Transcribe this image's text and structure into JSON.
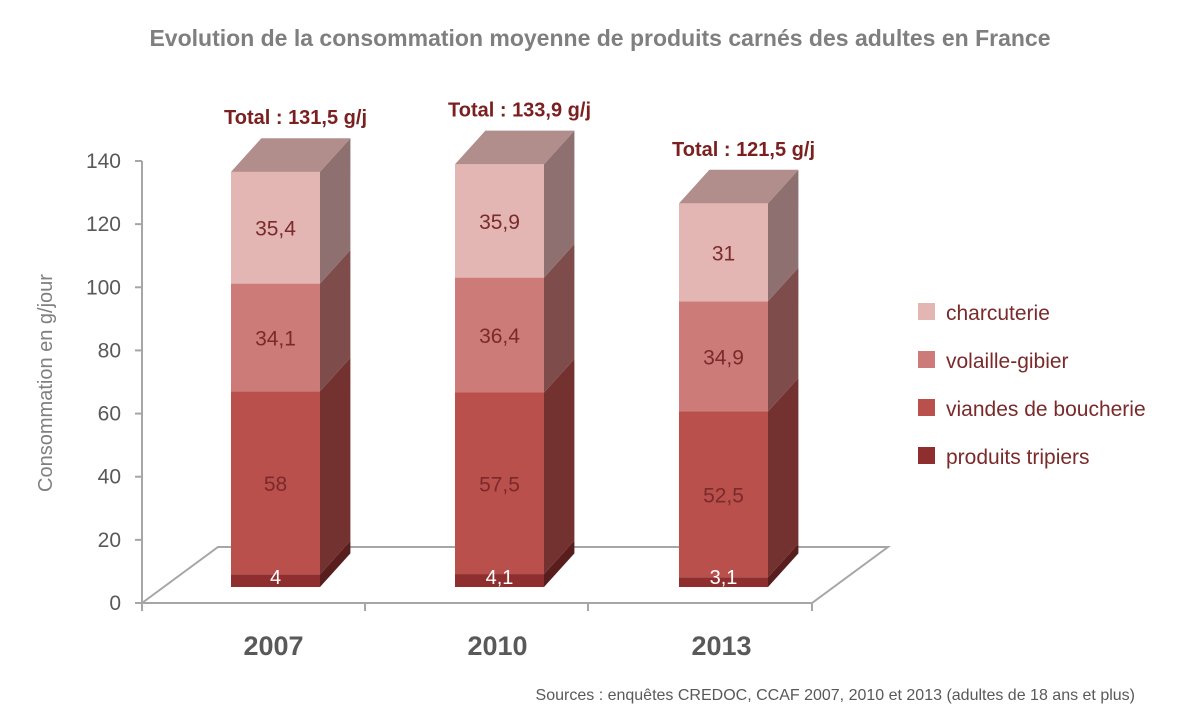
{
  "chart_data": {
    "type": "bar",
    "stacked": true,
    "three_d": true,
    "title": "Evolution de la consommation moyenne de produits carnés des adultes en France",
    "ylabel": "Consommation en g/jour",
    "xlabel": "",
    "ylim": [
      0,
      140
    ],
    "yticks": [
      "0",
      "20",
      "40",
      "60",
      "80",
      "100",
      "120",
      "140"
    ],
    "categories": [
      "2007",
      "2010",
      "2013"
    ],
    "totals": [
      "Total : 131,5 g/j",
      "Total : 133,9 g/j",
      "Total : 121,5 g/j"
    ],
    "series": [
      {
        "name": "produits tripiers",
        "values": [
          4,
          4.1,
          3.1
        ],
        "labels": [
          "4",
          "4,1",
          "3,1"
        ],
        "color": "#8e2e2e",
        "label_color": "#ffffff"
      },
      {
        "name": "viandes de boucherie",
        "values": [
          58,
          57.5,
          52.5
        ],
        "labels": [
          "58",
          "57,5",
          "52,5"
        ],
        "color": "#b9504c",
        "label_color": "#7a2a2a"
      },
      {
        "name": "volaille-gibier",
        "values": [
          34.1,
          36.4,
          34.9
        ],
        "labels": [
          "34,1",
          "36,4",
          "34,9"
        ],
        "color": "#cc7b79",
        "label_color": "#7a2a2a"
      },
      {
        "name": "charcuterie",
        "values": [
          35.4,
          35.9,
          31
        ],
        "labels": [
          "35,4",
          "35,9",
          "31"
        ],
        "color": "#e3b5b3",
        "label_color": "#7a2a2a"
      }
    ],
    "legend_order": [
      "charcuterie",
      "volaille-gibier",
      "viandes de boucherie",
      "produits tripiers"
    ],
    "legend_position": "right",
    "grid": false,
    "source": "Sources : enquêtes CREDOC, CCAF 2007, 2010 et 2013 (adultes de 18 ans et plus)"
  }
}
